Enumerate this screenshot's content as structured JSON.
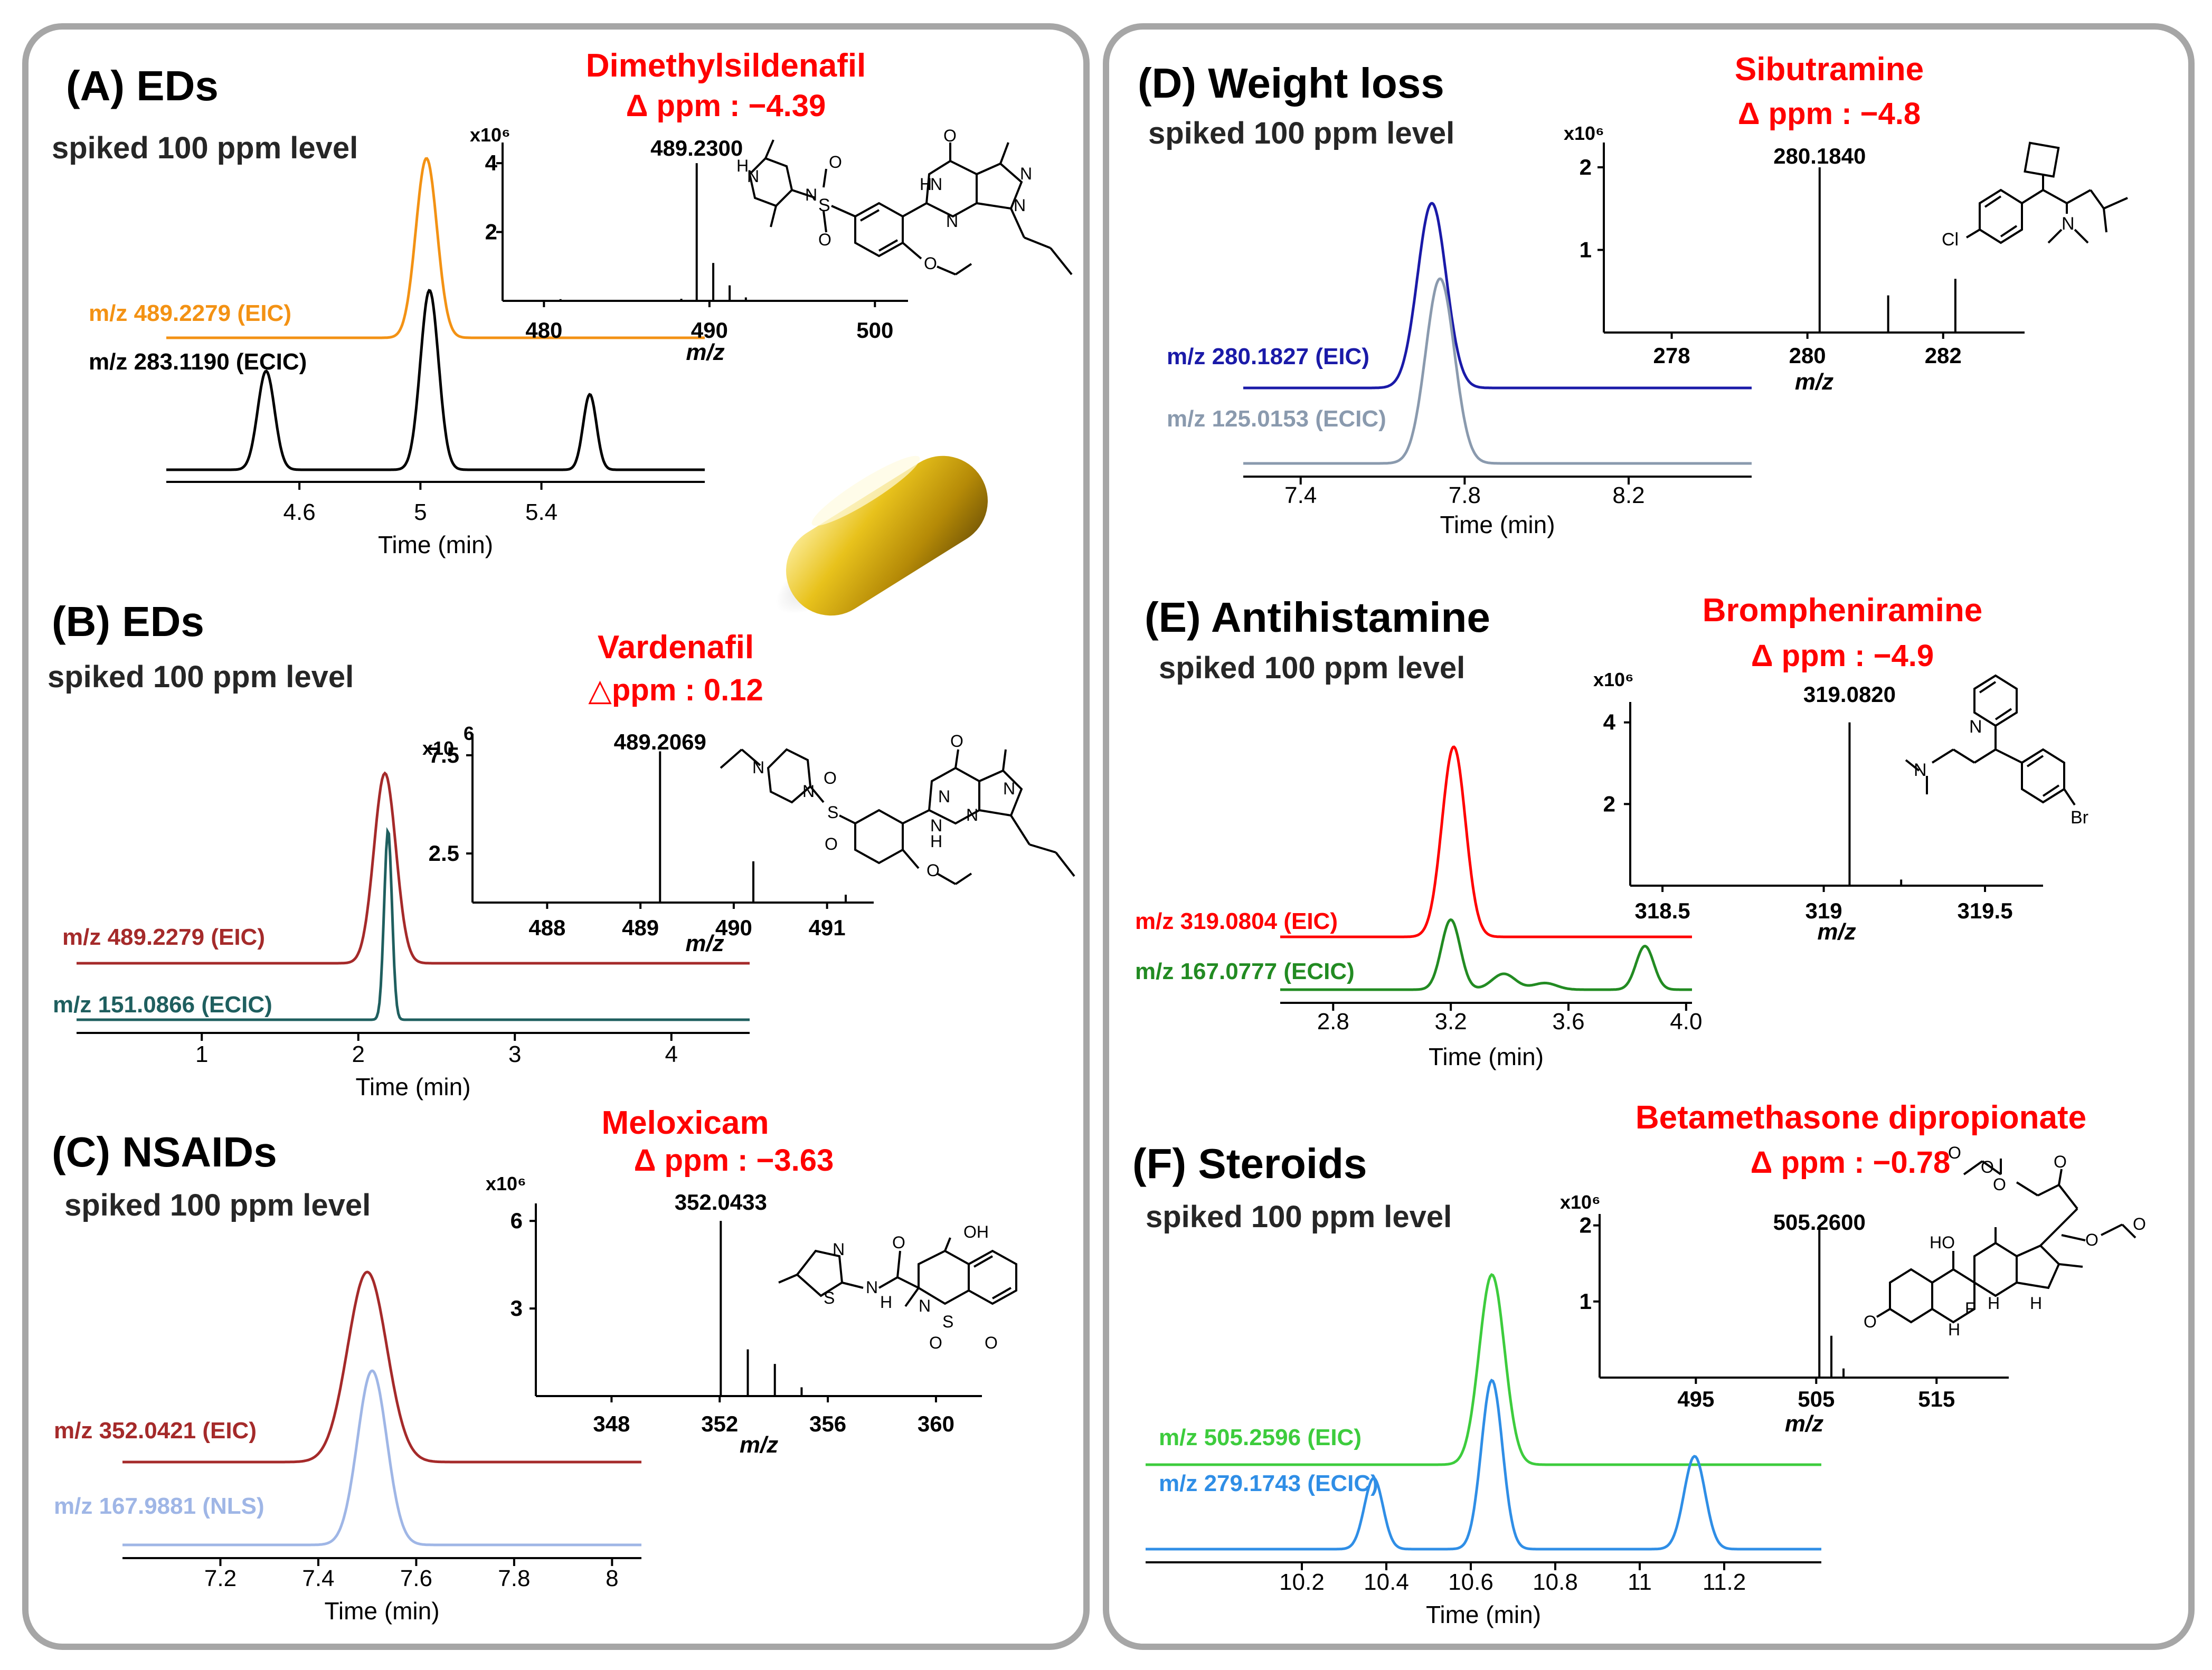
{
  "colors": {
    "panel_border": "#a6a6a6",
    "red": "#ff0000",
    "dark": "#000000"
  },
  "chart_data": [
    {
      "id": "A",
      "type": "line",
      "title": "(A) EDs",
      "subtitle": "spiked 100 ppm level",
      "compound": "Dimethylsildenafil",
      "delta_ppm": "Δ ppm : −4.39",
      "chromatogram": {
        "xlabel": "Time (min)",
        "xlim": [
          4.16,
          5.94
        ],
        "ticks": [
          4.6,
          5,
          5.4
        ],
        "tick_labels": [
          "4.6",
          "5",
          "5.4"
        ],
        "series": [
          {
            "name": "EIC",
            "label": "m/z 489.2279  (EIC)",
            "color": "#f39214",
            "peaks": [
              [
                5.02,
                1.0,
                0.035
              ]
            ],
            "baseline_offset": 0.62
          },
          {
            "name": "ECIC",
            "label": "m/z 283.1190  (ECIC)",
            "color": "#000000",
            "peaks": [
              [
                4.49,
                0.55,
                0.028
              ],
              [
                5.03,
                1.0,
                0.03
              ],
              [
                5.56,
                0.42,
                0.022
              ]
            ],
            "baseline_offset": 0.0
          }
        ]
      },
      "spectrum": {
        "multiplier": "x10⁶",
        "xlabel": "m/z",
        "xlim": [
          477.5,
          502
        ],
        "ticks": [
          480,
          490,
          500
        ],
        "tick_labels": [
          "480",
          "490",
          "500"
        ],
        "ylim": [
          0,
          4.6
        ],
        "yticks": [
          2,
          4
        ],
        "ytick_labels": [
          "2",
          "4"
        ],
        "peaks": [
          [
            489.23,
            4.0
          ],
          [
            490.23,
            1.1
          ],
          [
            491.22,
            0.45
          ],
          [
            492.2,
            0.1
          ],
          [
            481.0,
            0.05
          ],
          [
            486.5,
            0.03
          ],
          [
            488.3,
            0.06
          ]
        ],
        "base_peak_label": "489.2300"
      }
    },
    {
      "id": "B",
      "type": "line",
      "title": "(B) EDs",
      "subtitle": "spiked 100 ppm level",
      "compound": "Vardenafil",
      "delta_ppm": "△ppm : 0.12",
      "chromatogram": {
        "xlabel": "Time (min)",
        "xlim": [
          0.2,
          4.5
        ],
        "ticks": [
          1,
          2,
          3,
          4
        ],
        "tick_labels": [
          "1",
          "2",
          "3",
          "4"
        ],
        "series": [
          {
            "name": "EIC",
            "label": "m/z 489.2279 (EIC)",
            "color": "#a52a2a",
            "peaks": [
              [
                2.17,
                1.0,
                0.07
              ]
            ],
            "baseline_offset": 0.33
          },
          {
            "name": "ECIC",
            "label": "m/z 151.0866 (ECIC)",
            "color": "#1f5f5f",
            "peaks": [
              [
                2.19,
                1.0,
                0.025
              ]
            ],
            "baseline_offset": 0.0
          }
        ]
      },
      "spectrum": {
        "multiplier": "x10",
        "multiplier_exp": "6",
        "xlabel": "m/z",
        "xlim": [
          487.2,
          491.5
        ],
        "ticks": [
          488,
          489,
          490,
          491
        ],
        "tick_labels": [
          "488",
          "489",
          "490",
          "491"
        ],
        "ylim": [
          0,
          8.6
        ],
        "yticks": [
          2.5,
          7.5
        ],
        "ytick_labels": [
          "2.5",
          "7.5"
        ],
        "peaks": [
          [
            489.21,
            7.7
          ],
          [
            490.21,
            2.1
          ],
          [
            491.2,
            0.4
          ]
        ],
        "base_peak_label": "489.2069"
      }
    },
    {
      "id": "C",
      "type": "line",
      "title": "(C) NSAIDs",
      "subtitle": "spiked 100 ppm level",
      "compound": "Meloxicam",
      "delta_ppm": "Δ ppm : −3.63",
      "chromatogram": {
        "xlabel": "Time (min)",
        "xlim": [
          7.0,
          8.06
        ],
        "ticks": [
          7.2,
          7.4,
          7.6,
          7.8,
          8
        ],
        "tick_labels": [
          "7.2",
          "7.4",
          "7.6",
          "7.8",
          "8"
        ],
        "series": [
          {
            "name": "EIC",
            "label": "m/z 352.0421  (EIC)",
            "color": "#a52a2a",
            "peaks": [
              [
                7.5,
                1.0,
                0.04
              ]
            ],
            "baseline_offset": 0.45
          },
          {
            "name": "NLS",
            "label": "m/z 167.9881  (NLS)",
            "color": "#9fb6e6",
            "peaks": [
              [
                7.51,
                1.0,
                0.03
              ]
            ],
            "baseline_offset": 0.0
          }
        ]
      },
      "spectrum": {
        "multiplier": "x10⁶",
        "xlabel": "m/z",
        "xlim": [
          345.2,
          361.7
        ],
        "ticks": [
          348,
          352,
          356,
          360
        ],
        "tick_labels": [
          "348",
          "352",
          "356",
          "360"
        ],
        "ylim": [
          0,
          6.6
        ],
        "yticks": [
          3,
          6
        ],
        "ytick_labels": [
          "3",
          "6"
        ],
        "peaks": [
          [
            352.04,
            6.0
          ],
          [
            353.04,
            1.6
          ],
          [
            354.04,
            1.1
          ],
          [
            355.03,
            0.3
          ]
        ],
        "base_peak_label": "352.0433"
      }
    },
    {
      "id": "D",
      "type": "line",
      "title": "(D) Weight loss",
      "subtitle": "spiked 100 ppm level",
      "compound": "Sibutramine",
      "delta_ppm": "Δ ppm : −4.8",
      "chromatogram": {
        "xlabel": "Time (min)",
        "xlim": [
          7.26,
          8.5
        ],
        "ticks": [
          7.4,
          7.8,
          8.2
        ],
        "tick_labels": [
          "7.4",
          "7.8",
          "8.2"
        ],
        "series": [
          {
            "name": "EIC",
            "label": "m/z 280.1827  (EIC)",
            "color": "#1a1aa8",
            "peaks": [
              [
                7.72,
                1.0,
                0.035
              ]
            ],
            "baseline_offset": 0.33
          },
          {
            "name": "ECIC",
            "label": "m/z 125.0153  (ECIC)",
            "color": "#8a9aae",
            "peaks": [
              [
                7.74,
                1.0,
                0.035
              ]
            ],
            "baseline_offset": 0.0
          }
        ]
      },
      "spectrum": {
        "multiplier": "x10⁶",
        "xlabel": "m/z",
        "xlim": [
          277,
          283.2
        ],
        "ticks": [
          278,
          280,
          282
        ],
        "tick_labels": [
          "278",
          "280",
          "282"
        ],
        "ylim": [
          0,
          2.3
        ],
        "yticks": [
          1,
          2
        ],
        "ytick_labels": [
          "1",
          "2"
        ],
        "peaks": [
          [
            280.18,
            2.0
          ],
          [
            281.19,
            0.45
          ],
          [
            282.18,
            0.65
          ]
        ],
        "base_peak_label": "280.1840"
      }
    },
    {
      "id": "E",
      "type": "line",
      "title": "(E) Antihistamine",
      "subtitle": "spiked 100 ppm level",
      "compound": "Brompheniramine",
      "delta_ppm": "Δ ppm : −4.9",
      "chromatogram": {
        "xlabel": "Time (min)",
        "xlim": [
          2.62,
          4.02
        ],
        "ticks": [
          2.8,
          3.2,
          3.6,
          4.0
        ],
        "tick_labels": [
          "2.8",
          "3.2",
          "3.6",
          "4.0"
        ],
        "series": [
          {
            "name": "EIC",
            "label": "m/z 319.0804  (EIC)",
            "color": "#ff0000",
            "peaks": [
              [
                3.21,
                1.0,
                0.04
              ]
            ],
            "baseline_offset": 0.37
          },
          {
            "name": "ECIC",
            "label": "m/z 167.0777  (ECIC)",
            "color": "#228b22",
            "peaks": [
              [
                3.2,
                0.53,
                0.032
              ],
              [
                3.38,
                0.12,
                0.04
              ],
              [
                3.52,
                0.05,
                0.04
              ],
              [
                3.86,
                0.33,
                0.03
              ]
            ],
            "baseline_offset": 0.0
          }
        ]
      },
      "spectrum": {
        "multiplier": "x10⁶",
        "xlabel": "m/z",
        "xlim": [
          318.4,
          319.68
        ],
        "ticks": [
          318.5,
          319,
          319.5
        ],
        "tick_labels": [
          "318.5",
          "319",
          "319.5"
        ],
        "ylim": [
          0,
          4.5
        ],
        "yticks": [
          2,
          4
        ],
        "ytick_labels": [
          "2",
          "4"
        ],
        "peaks": [
          [
            319.08,
            4.0
          ],
          [
            319.24,
            0.15
          ]
        ],
        "base_peak_label": "319.0820"
      }
    },
    {
      "id": "F",
      "type": "line",
      "title": "(F) Steroids",
      "subtitle": "spiked 100 ppm level",
      "compound": "Betamethasone dipropionate",
      "delta_ppm": "Δ ppm : −0.78",
      "chromatogram": {
        "xlabel": "Time (min)",
        "xlim": [
          9.83,
          11.43
        ],
        "ticks": [
          10.2,
          10.4,
          10.6,
          10.8,
          11,
          11.2
        ],
        "tick_labels": [
          "10.2",
          "10.4",
          "10.6",
          "10.8",
          "11",
          "11.2"
        ],
        "series": [
          {
            "name": "EIC",
            "label": "m/z 505.2596  (EIC)",
            "color": "#3dcc3d",
            "peaks": [
              [
                10.65,
                1.0,
                0.03
              ]
            ],
            "baseline_offset": 0.22
          },
          {
            "name": "ECIC",
            "label": "m/z 279.1743  (ECIC)",
            "color": "#2f8ee6",
            "peaks": [
              [
                10.37,
                0.42,
                0.022
              ],
              [
                10.65,
                1.0,
                0.025
              ],
              [
                11.13,
                0.55,
                0.025
              ]
            ],
            "baseline_offset": 0.0
          }
        ]
      },
      "spectrum": {
        "multiplier": "x10⁶",
        "xlabel": "m/z",
        "xlim": [
          487,
          521
        ],
        "ticks": [
          495,
          505,
          515
        ],
        "tick_labels": [
          "495",
          "505",
          "515"
        ],
        "ylim": [
          0,
          2.15
        ],
        "yticks": [
          1,
          2
        ],
        "ytick_labels": [
          "1",
          "2"
        ],
        "peaks": [
          [
            505.26,
            2.0
          ],
          [
            506.26,
            0.55
          ],
          [
            507.27,
            0.12
          ]
        ],
        "base_peak_label": "505.2600"
      }
    }
  ],
  "structures": {
    "A": {
      "atoms": [
        "H",
        "N",
        "N",
        "O",
        "S",
        "O",
        "H",
        "N",
        "O",
        "N",
        "N",
        "N",
        "O"
      ]
    },
    "B": {
      "atoms": [
        "N",
        "N",
        "O",
        "S",
        "O",
        "O",
        "N",
        "N",
        "H",
        "N",
        "N",
        "O"
      ]
    },
    "C": {
      "atoms": [
        "N",
        "S",
        "H",
        "N",
        "O",
        "OH",
        "N",
        "S",
        "O",
        "O"
      ]
    },
    "D": {
      "atoms": [
        "Cl",
        "N"
      ]
    },
    "E": {
      "atoms": [
        "N",
        "N",
        "Br"
      ]
    },
    "F": {
      "atoms": [
        "O",
        "O",
        "O",
        "O",
        "O",
        "O",
        "HO",
        "H",
        "F",
        "H",
        "H",
        "O"
      ]
    }
  }
}
